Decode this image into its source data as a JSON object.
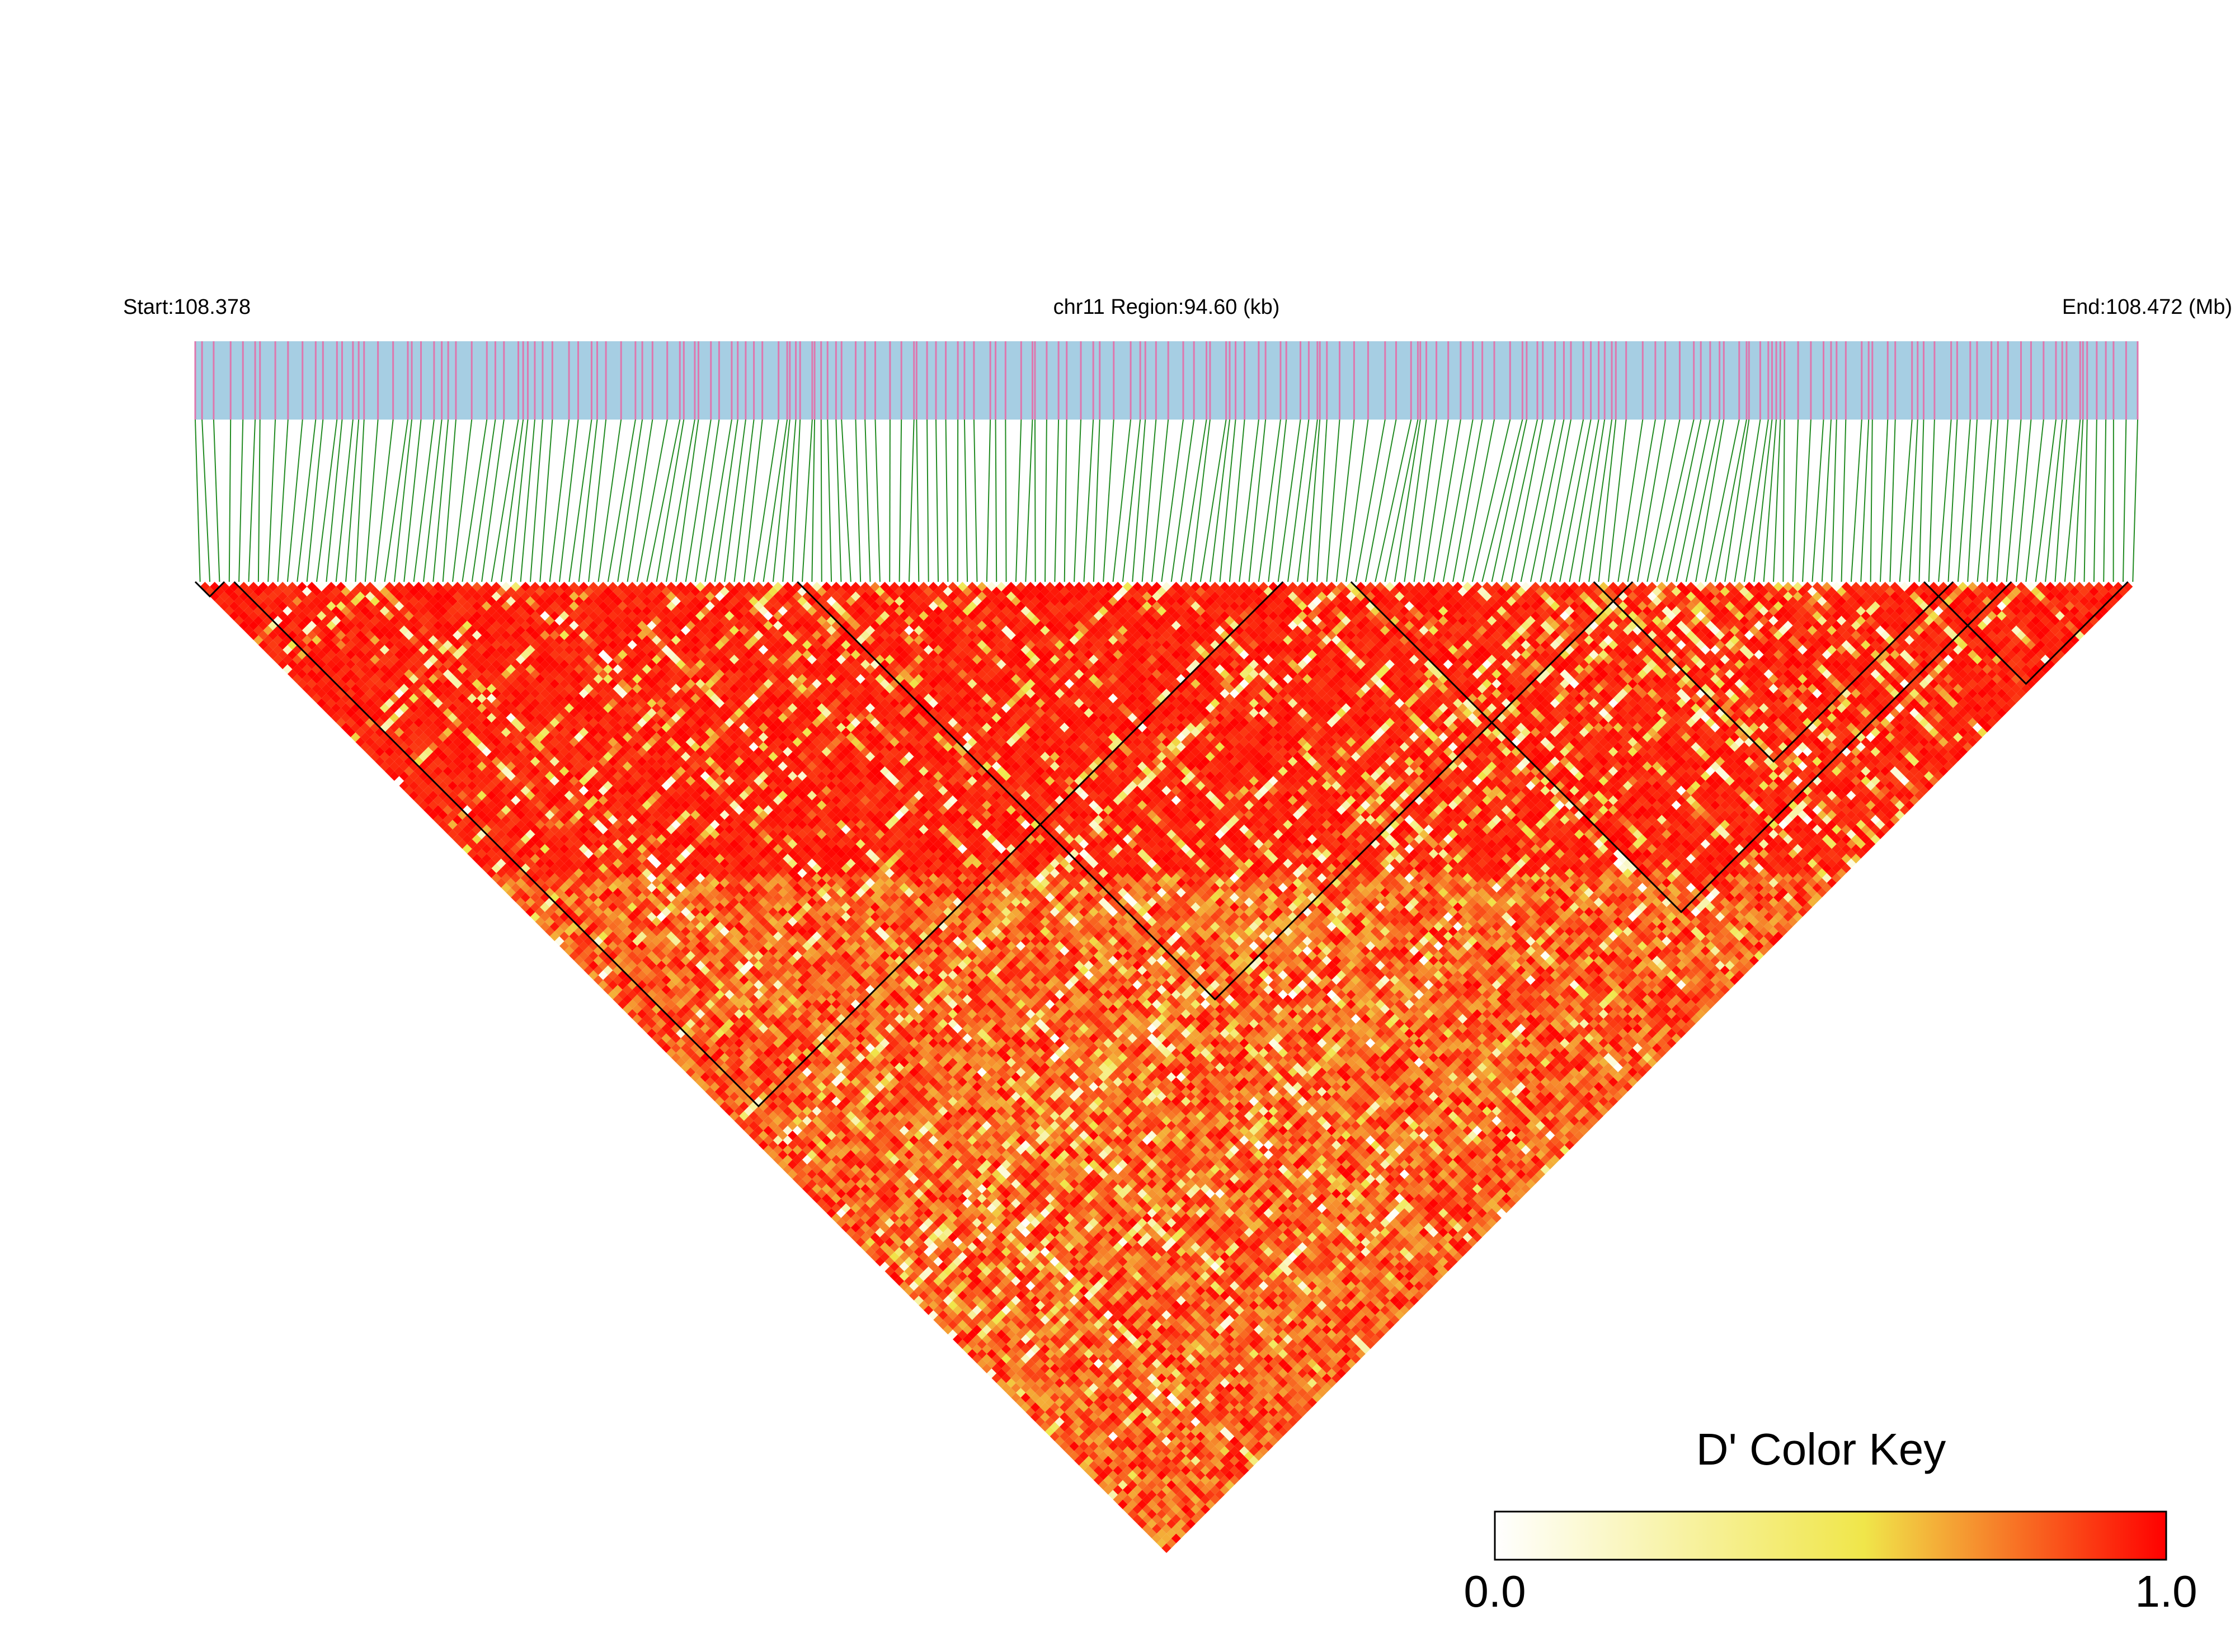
{
  "chart_data": {
    "type": "heatmap",
    "subtype": "linkage-disequilibrium-triangle",
    "chromosome": "chr11",
    "start_label": "Start:108.378",
    "region_label": "chr11 Region:94.60 (kb)",
    "end_label": "End:108.472 (Mb)",
    "start_mb": 108.378,
    "end_mb": 108.472,
    "region_kb": 94.6,
    "num_snps": 200,
    "statistic": "D'",
    "color_key": {
      "title": "D' Color Key",
      "min_label": "0.0",
      "max_label": "1.0",
      "min": 0.0,
      "max": 1.0,
      "colors": [
        "#ffffff",
        "#f0e64a",
        "#ff0000"
      ]
    },
    "ld_blocks_snp_index_ranges": [
      [
        0,
        2
      ],
      [
        4,
        111
      ],
      [
        119,
        186
      ],
      [
        62,
        147
      ],
      [
        144,
        180
      ],
      [
        178,
        198
      ]
    ],
    "colors": {
      "track_background": "#a6cee3",
      "snp_tick": "#de77ae",
      "connector_line": "#228b22",
      "block_outline": "#000000",
      "high_ld": "#ff0000",
      "mid_ld": "#f0e64a",
      "low_ld": "#ffffff"
    }
  }
}
